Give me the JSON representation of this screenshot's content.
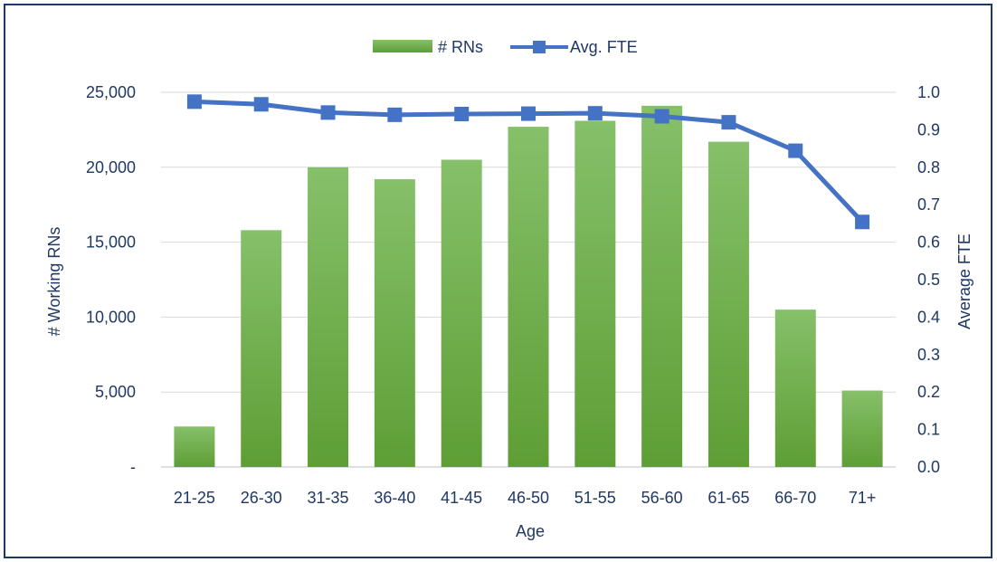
{
  "chart_data": {
    "type": "bar",
    "title": "",
    "xlabel": "Age",
    "ylabel": "# Working RNs",
    "y2label": "Average FTE",
    "categories": [
      "21-25",
      "26-30",
      "31-35",
      "36-40",
      "41-45",
      "46-50",
      "51-55",
      "56-60",
      "61-65",
      "66-70",
      "71+"
    ],
    "series": [
      {
        "name": "# RNs",
        "type": "bar",
        "axis": "left",
        "color": "#70ad47",
        "values": [
          2700,
          15800,
          20000,
          19200,
          20500,
          22700,
          23100,
          24100,
          21700,
          10500,
          5100
        ]
      },
      {
        "name": "Avg. FTE",
        "type": "line",
        "axis": "right",
        "color": "#4472c4",
        "values": [
          0.975,
          0.968,
          0.946,
          0.94,
          0.942,
          0.943,
          0.944,
          0.936,
          0.92,
          0.844,
          0.654
        ]
      }
    ],
    "ylim": [
      0,
      25000
    ],
    "y2lim": [
      0,
      1.0
    ],
    "yticks": [
      "-",
      "5,000",
      "10,000",
      "15,000",
      "20,000",
      "25,000"
    ],
    "y2ticks": [
      "0.0",
      "0.1",
      "0.2",
      "0.3",
      "0.4",
      "0.5",
      "0.6",
      "0.7",
      "0.8",
      "0.9",
      "1.0"
    ],
    "grid": true,
    "legend_position": "top"
  }
}
